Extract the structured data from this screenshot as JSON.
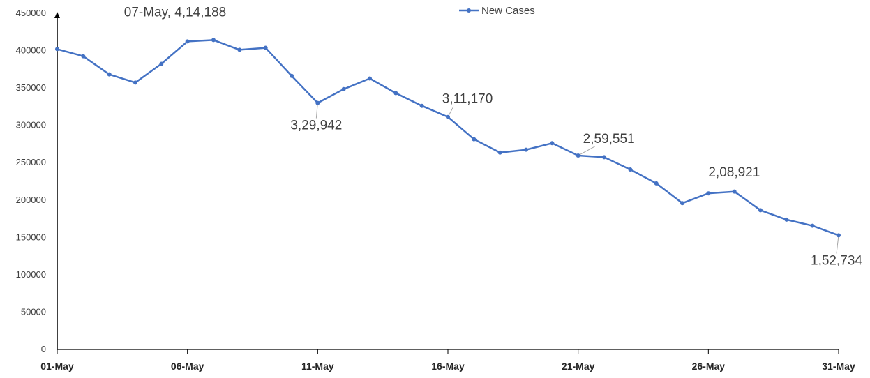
{
  "chart_data": {
    "type": "line",
    "title": "",
    "xlabel": "",
    "ylabel": "",
    "ylim": [
      0,
      450000
    ],
    "y_ticks": [
      "0",
      "50000",
      "100000",
      "150000",
      "200000",
      "250000",
      "300000",
      "350000",
      "400000",
      "450000"
    ],
    "x_tick_labels": [
      "01-May",
      "06-May",
      "11-May",
      "16-May",
      "21-May",
      "26-May",
      "31-May"
    ],
    "grid": false,
    "legend": "top-center",
    "color": "#4472C4",
    "categories": [
      "01-May",
      "02-May",
      "03-May",
      "04-May",
      "05-May",
      "06-May",
      "07-May",
      "08-May",
      "09-May",
      "10-May",
      "11-May",
      "12-May",
      "13-May",
      "14-May",
      "15-May",
      "16-May",
      "17-May",
      "18-May",
      "19-May",
      "20-May",
      "21-May",
      "22-May",
      "23-May",
      "24-May",
      "25-May",
      "26-May",
      "27-May",
      "28-May",
      "29-May",
      "30-May",
      "31-May"
    ],
    "series": [
      {
        "name": "New Cases",
        "values": [
          401993,
          392488,
          368147,
          357229,
          382315,
          412262,
          414188,
          401078,
          403738,
          366161,
          329942,
          348421,
          362727,
          343144,
          326098,
          311170,
          281386,
          263533,
          267334,
          276110,
          259551,
          257299,
          240842,
          222315,
          195815,
          208921,
          211298,
          186364,
          173790,
          165553,
          152734
        ]
      }
    ],
    "annotations": [
      {
        "index": 6,
        "text": "07-May, 4,14,188"
      },
      {
        "index": 10,
        "text": "3,29,942"
      },
      {
        "index": 15,
        "text": "3,11,170"
      },
      {
        "index": 20,
        "text": "2,59,551"
      },
      {
        "index": 25,
        "text": "2,08,921"
      },
      {
        "index": 30,
        "text": "1,52,734"
      }
    ]
  }
}
